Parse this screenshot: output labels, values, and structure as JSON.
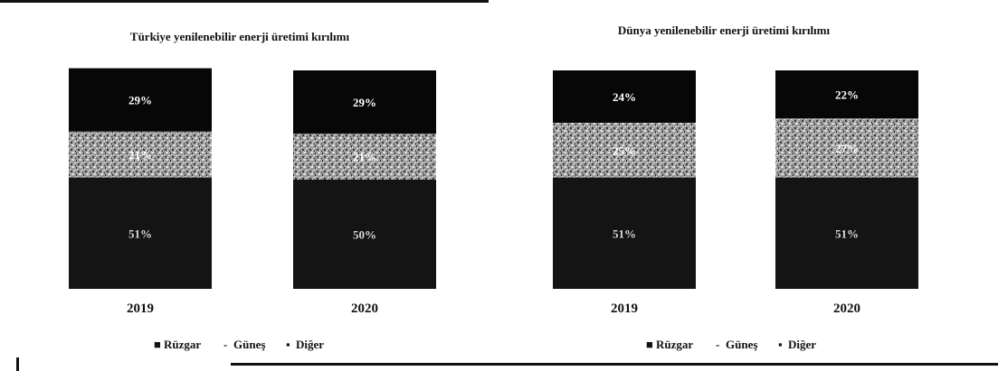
{
  "chart_data": [
    {
      "type": "bar",
      "stacked": true,
      "title": "Türkiye yenilenebilir enerji üretimi kırılımı",
      "categories": [
        "2019",
        "2020"
      ],
      "series": [
        {
          "name": "Rüzgar",
          "values": [
            51,
            50
          ],
          "labels": [
            "51%",
            "50%"
          ]
        },
        {
          "name": "Güneş",
          "values": [
            21,
            21
          ],
          "labels": [
            "21%",
            "21%"
          ]
        },
        {
          "name": "Diğer",
          "values": [
            29,
            29
          ],
          "labels": [
            "29%",
            "29%"
          ]
        }
      ],
      "ylim": [
        0,
        100
      ],
      "grid": false,
      "legend": "bottom"
    },
    {
      "type": "bar",
      "stacked": true,
      "title": "Dünya yenilenebilir enerji üretimi kırılımı",
      "categories": [
        "2019",
        "2020"
      ],
      "series": [
        {
          "name": "Rüzgar",
          "values": [
            51,
            51
          ],
          "labels": [
            "51%",
            "51%"
          ]
        },
        {
          "name": "Güneş",
          "values": [
            25,
            27
          ],
          "labels": [
            "25%",
            "27%"
          ]
        },
        {
          "name": "Diğer",
          "values": [
            24,
            22
          ],
          "labels": [
            "24%",
            "22%"
          ]
        }
      ],
      "ylim": [
        0,
        100
      ],
      "grid": false,
      "legend": "bottom"
    }
  ],
  "colors": {
    "Rüzgar": "#141414",
    "Güneş": "#a8a8a8",
    "Diğer": "#070707",
    "label_light": "#ffffff",
    "label_dim": "#d9d9d9"
  }
}
